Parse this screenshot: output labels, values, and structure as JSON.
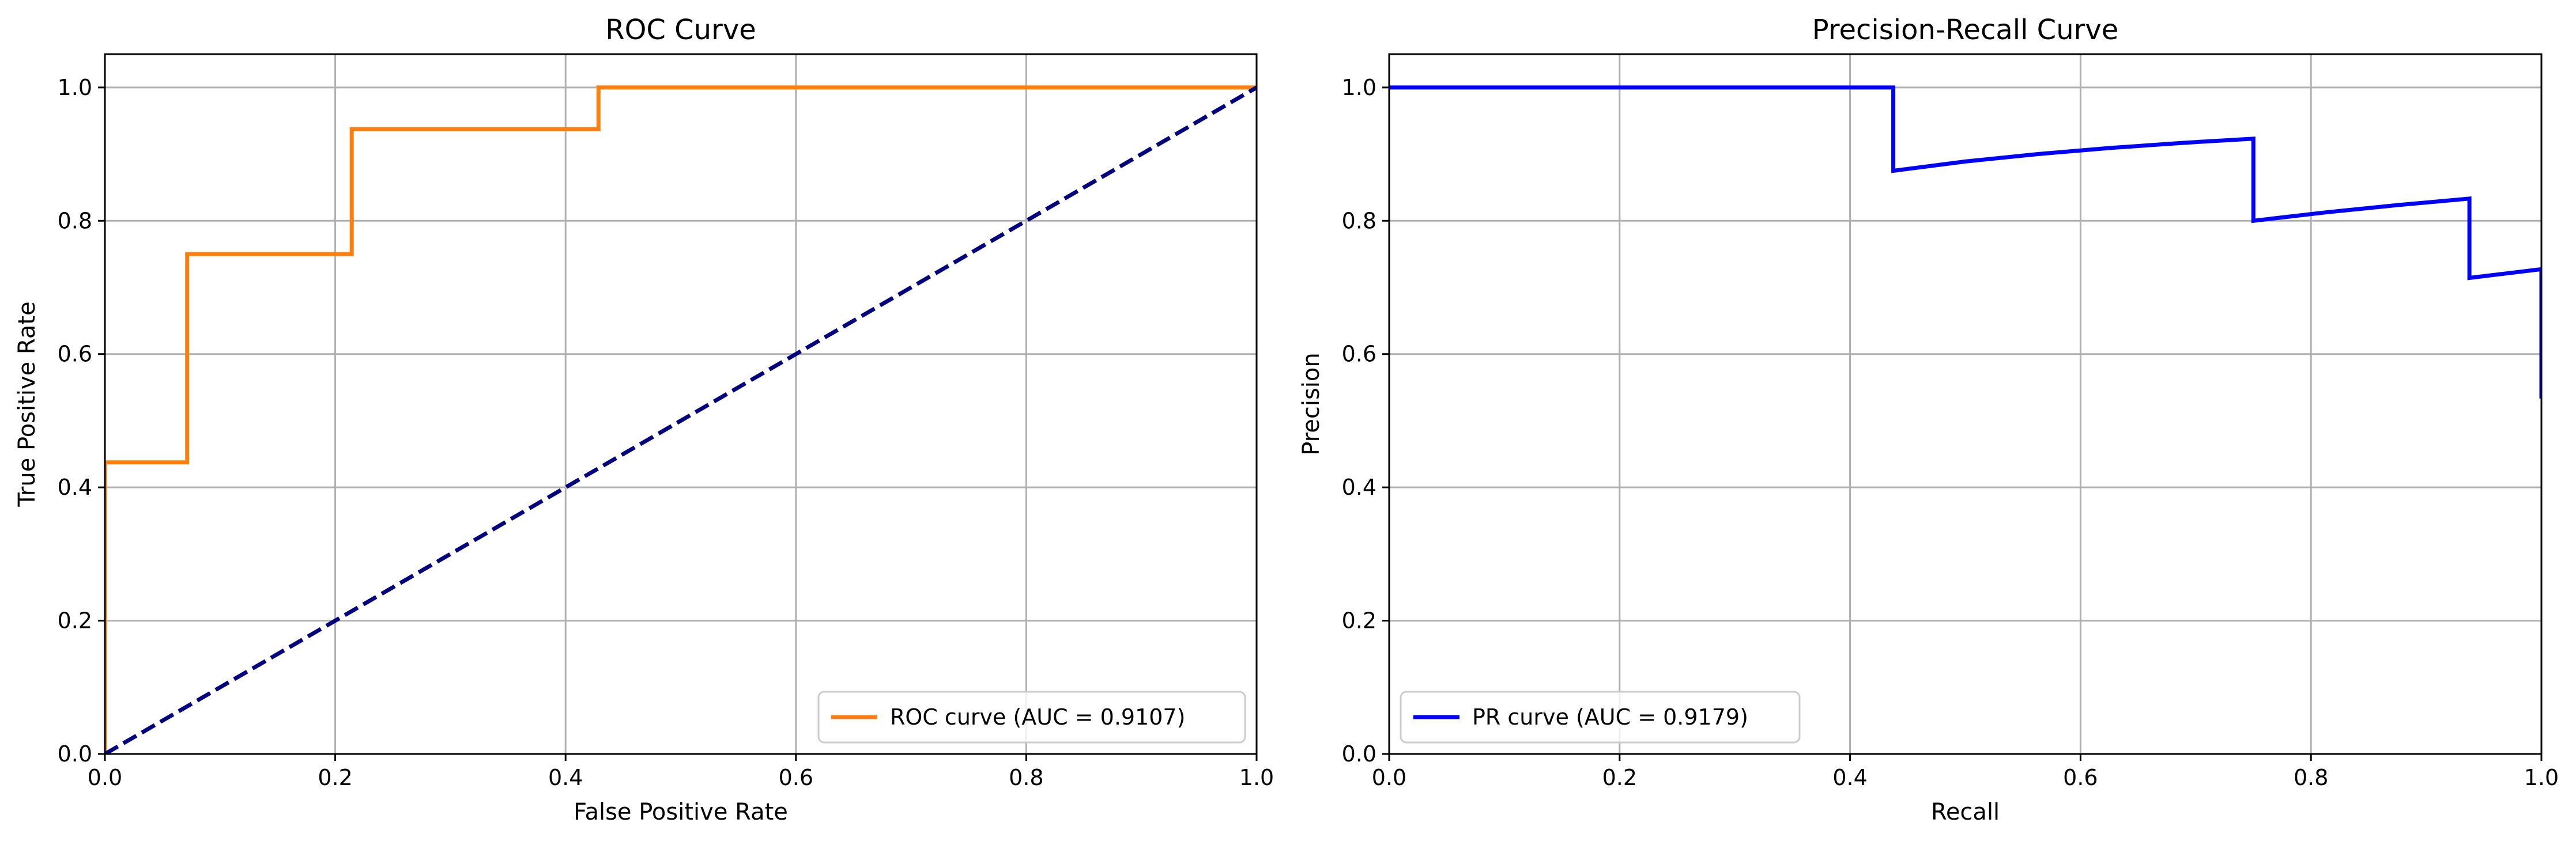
{
  "colors": {
    "roc_curve": "#ff7f0e",
    "diagonal": "#000080",
    "pr_curve": "#0000ff",
    "grid": "#b0b0b0",
    "axes": "#000000",
    "background": "#ffffff"
  },
  "chart_data": [
    {
      "type": "line",
      "title": "ROC Curve",
      "xlabel": "False Positive Rate",
      "ylabel": "True Positive Rate",
      "xlim": [
        0.0,
        1.0
      ],
      "ylim": [
        0.0,
        1.05
      ],
      "xticks": [
        "0.0",
        "0.2",
        "0.4",
        "0.6",
        "0.8",
        "1.0"
      ],
      "yticks": [
        "0.0",
        "0.2",
        "0.4",
        "0.6",
        "0.8",
        "1.0"
      ],
      "grid": true,
      "legend_position": "lower right",
      "series": [
        {
          "name": "ROC curve (AUC = 0.9107)",
          "color": "#ff7f0e",
          "style": "solid",
          "in_legend": true,
          "x": [
            0.0,
            0.0,
            0.0714,
            0.0714,
            0.2143,
            0.2143,
            0.4286,
            0.4286,
            1.0
          ],
          "y": [
            0.0,
            0.4375,
            0.4375,
            0.75,
            0.75,
            0.9375,
            0.9375,
            1.0,
            1.0
          ]
        },
        {
          "color": "#000080",
          "style": "dashed",
          "in_legend": false,
          "x": [
            0.0,
            1.0
          ],
          "y": [
            0.0,
            1.0
          ]
        }
      ]
    },
    {
      "type": "line",
      "title": "Precision-Recall Curve",
      "xlabel": "Recall",
      "ylabel": "Precision",
      "xlim": [
        0.0,
        1.0
      ],
      "ylim": [
        0.0,
        1.05
      ],
      "xticks": [
        "0.0",
        "0.2",
        "0.4",
        "0.6",
        "0.8",
        "1.0"
      ],
      "yticks": [
        "0.0",
        "0.2",
        "0.4",
        "0.6",
        "0.8",
        "1.0"
      ],
      "grid": true,
      "legend_position": "lower left",
      "series": [
        {
          "name": "PR curve (AUC = 0.9179)",
          "color": "#0000ff",
          "style": "solid",
          "in_legend": true,
          "x": [
            0.0,
            0.4375,
            0.4375,
            0.5,
            0.5625,
            0.625,
            0.6875,
            0.75,
            0.75,
            0.8125,
            0.875,
            0.9375,
            0.9375,
            1.0,
            1.0
          ],
          "y": [
            1.0,
            1.0,
            0.875,
            0.8889,
            0.9,
            0.9091,
            0.9167,
            0.9231,
            0.8,
            0.8125,
            0.8235,
            0.8333,
            0.7143,
            0.7273,
            0.5333
          ]
        }
      ]
    }
  ]
}
